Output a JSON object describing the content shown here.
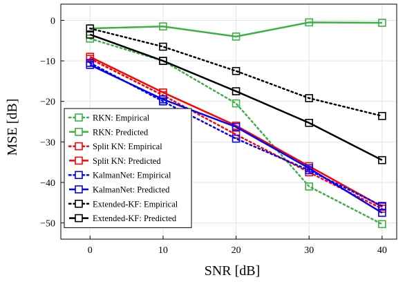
{
  "chart_data": {
    "type": "line",
    "xlabel": "SNR [dB]",
    "ylabel": "MSE [dB]",
    "x": [
      0,
      10,
      20,
      30,
      40
    ],
    "xticks": [
      0,
      10,
      20,
      30,
      40
    ],
    "yticks": [
      0,
      -10,
      -20,
      -30,
      -40,
      -50
    ],
    "xlim": [
      -4,
      42
    ],
    "ylim": [
      -54,
      4
    ],
    "grid": true,
    "legend_position": "bottom-left",
    "series": [
      {
        "name": "RKN: Empirical",
        "color": "#3cb043",
        "style": "dotted",
        "values": [
          -4.5,
          -10.0,
          -20.5,
          -41.0,
          -50.3
        ]
      },
      {
        "name": "RKN: Predicted",
        "color": "#3cb043",
        "style": "solid",
        "values": [
          -2.0,
          -1.5,
          -4.0,
          -0.5,
          -0.6
        ]
      },
      {
        "name": "Split KN: Empirical",
        "color": "#ff0000",
        "style": "dotted",
        "values": [
          -9.5,
          -18.5,
          -28.2,
          -37.5,
          -46.5
        ]
      },
      {
        "name": "Split KN: Predicted",
        "color": "#ff0000",
        "style": "solid",
        "values": [
          -9.0,
          -17.8,
          -26.0,
          -36.0,
          -46.0
        ]
      },
      {
        "name": "KalmanNet: Empirical",
        "color": "#0000ff",
        "style": "dotted",
        "values": [
          -10.5,
          -20.0,
          -29.2,
          -37.0,
          -45.8
        ]
      },
      {
        "name": "KalmanNet: Predicted",
        "color": "#0000ff",
        "style": "solid",
        "values": [
          -11.0,
          -19.5,
          -26.3,
          -36.5,
          -47.5
        ]
      },
      {
        "name": "Extended-KF: Empirical",
        "color": "#000000",
        "style": "dotted",
        "values": [
          -2.0,
          -6.5,
          -12.5,
          -19.2,
          -23.6
        ]
      },
      {
        "name": "Extended-KF: Predicted",
        "color": "#000000",
        "style": "solid",
        "values": [
          -3.5,
          -10.0,
          -17.5,
          -25.3,
          -34.5
        ]
      }
    ]
  }
}
